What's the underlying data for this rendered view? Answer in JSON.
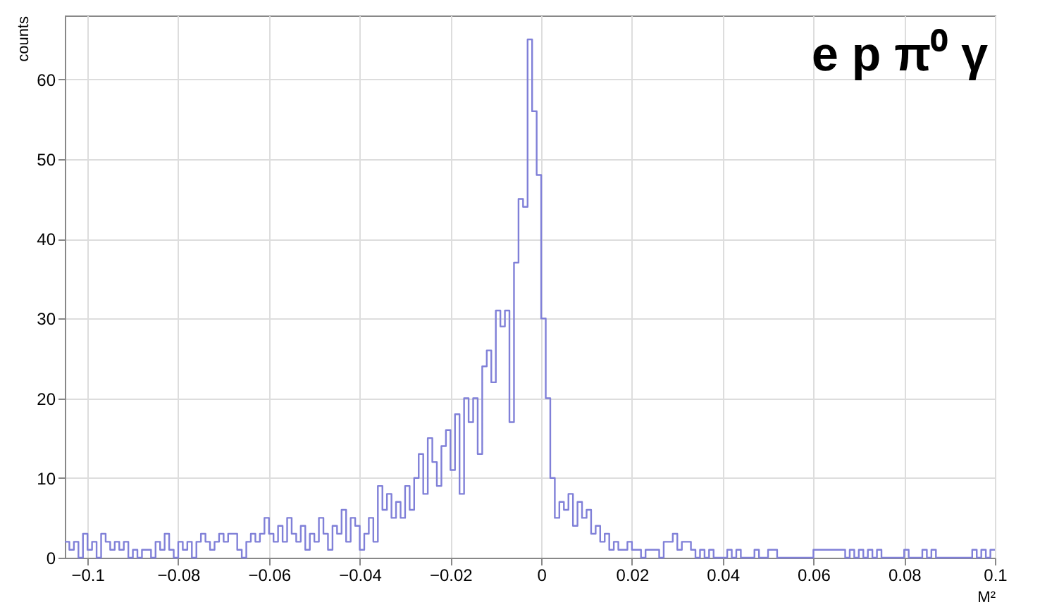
{
  "chart_data": {
    "type": "histogram",
    "xlabel": "M²",
    "ylabel": "counts",
    "annotations": [
      "e p π⁰ γ"
    ],
    "color": "#8080d8",
    "xlim": [
      -0.105,
      0.1
    ],
    "ylim": [
      0,
      68
    ],
    "xticks": [
      -0.1,
      -0.08,
      -0.06,
      -0.04,
      -0.02,
      0,
      0.02,
      0.04,
      0.06,
      0.08,
      0.1
    ],
    "yticks": [
      0,
      10,
      20,
      30,
      40,
      50,
      60
    ],
    "grid": true,
    "bins": [
      -0.105,
      -0.104,
      -0.103,
      -0.102,
      -0.101,
      -0.1,
      -0.099,
      -0.098,
      -0.097,
      -0.096,
      -0.095,
      -0.094,
      -0.093,
      -0.092,
      -0.091,
      -0.09,
      -0.089,
      -0.088,
      -0.087,
      -0.086,
      -0.085,
      -0.084,
      -0.083,
      -0.082,
      -0.081,
      -0.08,
      -0.079,
      -0.078,
      -0.077,
      -0.076,
      -0.075,
      -0.074,
      -0.073,
      -0.072,
      -0.071,
      -0.07,
      -0.069,
      -0.068,
      -0.067,
      -0.066,
      -0.065,
      -0.064,
      -0.063,
      -0.062,
      -0.061,
      -0.06,
      -0.059,
      -0.058,
      -0.057,
      -0.056,
      -0.055,
      -0.054,
      -0.053,
      -0.052,
      -0.051,
      -0.05,
      -0.049,
      -0.048,
      -0.047,
      -0.046,
      -0.045,
      -0.044,
      -0.043,
      -0.042,
      -0.041,
      -0.04,
      -0.039,
      -0.038,
      -0.037,
      -0.036,
      -0.035,
      -0.034,
      -0.033,
      -0.032,
      -0.031,
      -0.03,
      -0.029,
      -0.028,
      -0.027,
      -0.026,
      -0.025,
      -0.024,
      -0.023,
      -0.022,
      -0.021,
      -0.02,
      -0.019,
      -0.018,
      -0.017,
      -0.016,
      -0.015,
      -0.014,
      -0.013,
      -0.012,
      -0.011,
      -0.01,
      -0.009,
      -0.008,
      -0.007,
      -0.006,
      -0.005,
      -0.004,
      -0.003,
      -0.002,
      -0.001,
      0,
      0.001,
      0.002,
      0.003,
      0.004,
      0.005,
      0.006,
      0.007,
      0.008,
      0.009,
      0.01,
      0.011,
      0.012,
      0.013,
      0.014,
      0.015,
      0.016,
      0.017,
      0.018,
      0.019,
      0.02,
      0.021,
      0.022,
      0.023,
      0.024,
      0.025,
      0.026,
      0.027,
      0.028,
      0.029,
      0.03,
      0.031,
      0.032,
      0.033,
      0.034,
      0.035,
      0.036,
      0.037,
      0.038,
      0.039,
      0.04,
      0.041,
      0.042,
      0.043,
      0.044,
      0.045,
      0.046,
      0.047,
      0.048,
      0.049,
      0.05,
      0.051,
      0.052,
      0.053,
      0.054,
      0.055,
      0.056,
      0.057,
      0.058,
      0.059,
      0.06,
      0.061,
      0.062,
      0.063,
      0.064,
      0.065,
      0.066,
      0.067,
      0.068,
      0.069,
      0.07,
      0.071,
      0.072,
      0.073,
      0.074,
      0.075,
      0.076,
      0.077,
      0.078,
      0.079,
      0.08,
      0.081,
      0.082,
      0.083,
      0.084,
      0.085,
      0.086,
      0.087,
      0.088,
      0.089,
      0.09,
      0.091,
      0.092,
      0.093,
      0.094,
      0.095,
      0.096,
      0.097,
      0.098,
      0.099,
      0.1
    ],
    "values": [
      2,
      1,
      2,
      0,
      3,
      1,
      2,
      0,
      3,
      2,
      1,
      2,
      1,
      2,
      0,
      1,
      0,
      1,
      1,
      0,
      2,
      1,
      3,
      1,
      0,
      2,
      1,
      2,
      0,
      2,
      3,
      2,
      1,
      2,
      3,
      2,
      3,
      3,
      1,
      0,
      2,
      3,
      2,
      3,
      5,
      3,
      2,
      4,
      2,
      5,
      3,
      2,
      4,
      1,
      3,
      2,
      5,
      3,
      1,
      4,
      3,
      6,
      2,
      5,
      4,
      1,
      3,
      5,
      2,
      9,
      6,
      8,
      5,
      7,
      5,
      9,
      6,
      10,
      13,
      8,
      15,
      12,
      9,
      14,
      16,
      11,
      18,
      8,
      20,
      17,
      20,
      13,
      24,
      26,
      22,
      31,
      29,
      31,
      17,
      37,
      45,
      44,
      65,
      56,
      48,
      30,
      20,
      10,
      5,
      7,
      6,
      8,
      4,
      7,
      5,
      6,
      3,
      4,
      2,
      3,
      1,
      2,
      1,
      1,
      2,
      1,
      1,
      0,
      1,
      1,
      1,
      0,
      2,
      2,
      3,
      1,
      2,
      2,
      1,
      0,
      1,
      0,
      1,
      0,
      0,
      0,
      1,
      0,
      1,
      0,
      0,
      0,
      1,
      0,
      0,
      1,
      1,
      0,
      0,
      0,
      0,
      0,
      0,
      0,
      0,
      1,
      1,
      1,
      1,
      1,
      1,
      1,
      0,
      1,
      0,
      1,
      0,
      1,
      0,
      1,
      0,
      0,
      0,
      0,
      0,
      1,
      0,
      0,
      0,
      1,
      0,
      1,
      0,
      0,
      0,
      0,
      0,
      0,
      0,
      0,
      1,
      0,
      1,
      0,
      1
    ]
  }
}
